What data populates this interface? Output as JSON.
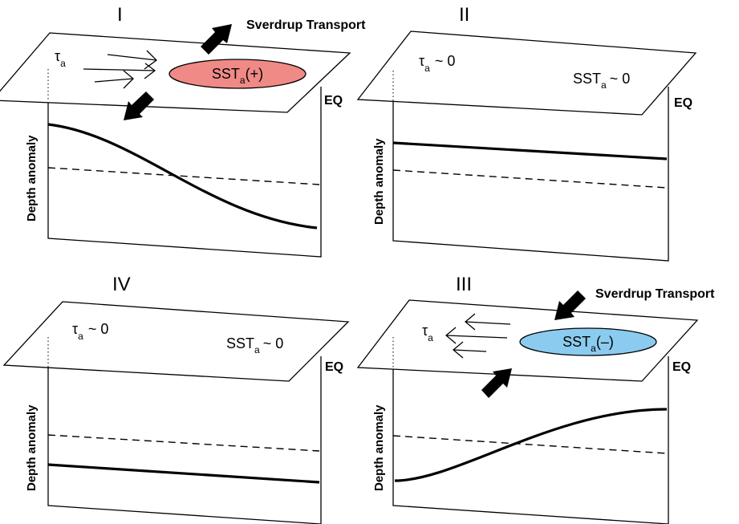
{
  "panels": {
    "I": {
      "numeral": "I",
      "tau": "τ",
      "tau_sub": "a",
      "sst": "SST",
      "sst_sub": "a",
      "sst_suffix": "(+)",
      "transport_label": "Sverdrup Transport",
      "eq": "EQ",
      "ylabel": "Depth anomaly",
      "sst_fill": "#f08a86"
    },
    "II": {
      "numeral": "II",
      "tau": "τ",
      "tau_sub": "a",
      "tau_suffix": "~ 0",
      "sst": "SST",
      "sst_sub": "a",
      "sst_suffix": "~ 0",
      "eq": "EQ",
      "ylabel": "Depth anomaly"
    },
    "III": {
      "numeral": "III",
      "tau": "τ",
      "tau_sub": "a",
      "sst": "SST",
      "sst_sub": "a",
      "sst_suffix": "(–)",
      "transport_label": "Sverdrup Transport",
      "eq": "EQ",
      "ylabel": "Depth anomaly",
      "sst_fill": "#8ccbf0"
    },
    "IV": {
      "numeral": "IV",
      "tau": "τ",
      "tau_sub": "a",
      "tau_suffix": "~ 0",
      "sst": "SST",
      "sst_sub": "a",
      "sst_suffix": "~ 0",
      "eq": "EQ",
      "ylabel": "Depth anomaly"
    }
  }
}
